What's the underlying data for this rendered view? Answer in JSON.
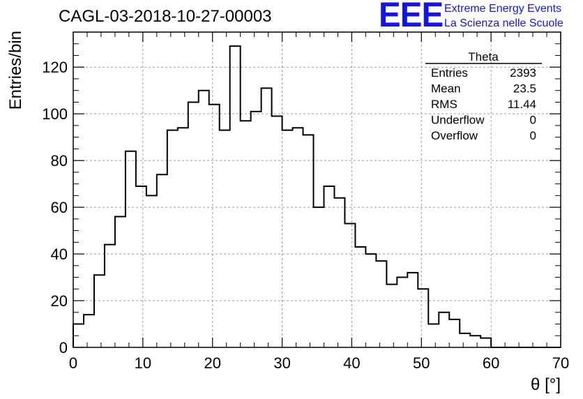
{
  "header": {
    "title": "CAGL-03-2018-10-27-00003",
    "logo_text": "EEE",
    "logo_line1": "Extreme Energy Events",
    "logo_line2": "La Scienza nelle Scuole",
    "logo_color": "#1414e6"
  },
  "stats": {
    "name": "Theta",
    "rows": [
      {
        "label": "Entries",
        "value": "2393"
      },
      {
        "label": "Mean",
        "value": "23.5"
      },
      {
        "label": "RMS",
        "value": "11.44"
      },
      {
        "label": "Underflow",
        "value": "0"
      },
      {
        "label": "Overflow",
        "value": "0"
      }
    ]
  },
  "chart_data": {
    "type": "bar",
    "histogram": true,
    "xlabel": "θ [°]",
    "ylabel": "Entries/bin",
    "xlim": [
      0,
      70
    ],
    "ylim": [
      0,
      135
    ],
    "grid": true,
    "bin_width": 1.5,
    "bin_start": 0,
    "xticks": [
      0,
      10,
      20,
      30,
      40,
      50,
      60,
      70
    ],
    "yticks": [
      0,
      20,
      40,
      60,
      80,
      100,
      120
    ],
    "values": [
      10,
      14,
      31,
      44,
      56,
      84,
      69,
      65,
      74,
      93,
      94,
      105,
      110,
      104,
      93,
      129,
      97,
      101,
      111,
      99,
      93,
      94,
      91,
      60,
      69,
      64,
      53,
      43,
      40,
      37,
      27,
      30,
      32,
      25,
      10,
      15,
      12,
      6,
      5,
      4,
      0,
      0,
      0,
      0,
      0,
      0,
      0
    ]
  }
}
